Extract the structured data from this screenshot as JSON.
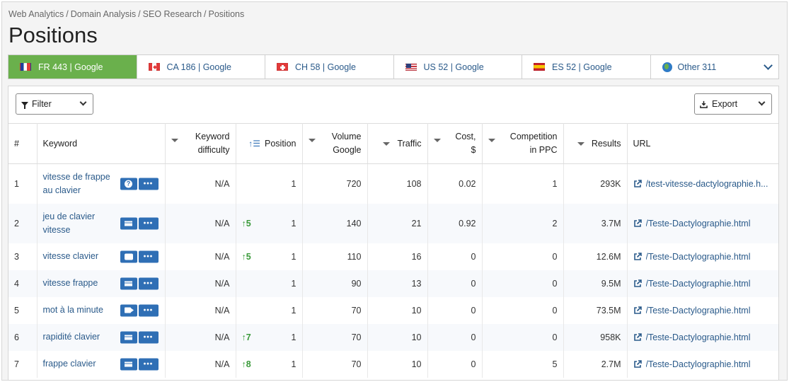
{
  "breadcrumb": [
    "Web Analytics",
    "Domain Analysis",
    "SEO Research",
    "Positions"
  ],
  "page_title": "Positions",
  "tabs": [
    {
      "label": "FR 443 | Google",
      "flag": "fr",
      "active": true
    },
    {
      "label": "CA 186 | Google",
      "flag": "ca",
      "active": false
    },
    {
      "label": "CH 58 | Google",
      "flag": "ch",
      "active": false
    },
    {
      "label": "US 52 | Google",
      "flag": "us",
      "active": false
    },
    {
      "label": "ES 52 | Google",
      "flag": "es",
      "active": false
    },
    {
      "label": "Other 311",
      "flag": "globe",
      "active": false
    }
  ],
  "toolbar": {
    "filter_label": "Filter",
    "export_label": "Export"
  },
  "columns": {
    "index": "#",
    "keyword": "Keyword",
    "difficulty": [
      "Keyword",
      "difficulty"
    ],
    "position": "Position",
    "volume": [
      "Volume",
      "Google"
    ],
    "traffic": "Traffic",
    "cost": [
      "Cost,",
      "$"
    ],
    "competition": [
      "Competition",
      "in PPC"
    ],
    "results": "Results",
    "url": "URL"
  },
  "rows": [
    {
      "n": "1",
      "keyword": [
        "vitesse de frappe",
        "au clavier"
      ],
      "icon": "question",
      "difficulty": "N/A",
      "change": "",
      "position": "1",
      "volume": "720",
      "traffic": "108",
      "cost": "0.02",
      "competition": "1",
      "results": "293K",
      "url": "/test-vitesse-dactylographie.h..."
    },
    {
      "n": "2",
      "keyword": [
        "jeu de clavier",
        "vitesse"
      ],
      "icon": "lines",
      "difficulty": "N/A",
      "change": "↑5",
      "position": "1",
      "volume": "140",
      "traffic": "21",
      "cost": "0.92",
      "competition": "2",
      "results": "3.7M",
      "url": "/Teste-Dactylographie.html"
    },
    {
      "n": "3",
      "keyword": [
        "vitesse clavier"
      ],
      "icon": "bubble",
      "difficulty": "N/A",
      "change": "↑5",
      "position": "1",
      "volume": "110",
      "traffic": "16",
      "cost": "0",
      "competition": "0",
      "results": "12.6M",
      "url": "/Teste-Dactylographie.html"
    },
    {
      "n": "4",
      "keyword": [
        "vitesse frappe"
      ],
      "icon": "lines",
      "difficulty": "N/A",
      "change": "",
      "position": "1",
      "volume": "90",
      "traffic": "13",
      "cost": "0",
      "competition": "0",
      "results": "9.5M",
      "url": "/Teste-Dactylographie.html"
    },
    {
      "n": "5",
      "keyword": [
        "mot à la minute"
      ],
      "icon": "camera",
      "difficulty": "N/A",
      "change": "",
      "position": "1",
      "volume": "70",
      "traffic": "10",
      "cost": "0",
      "competition": "0",
      "results": "73.5M",
      "url": "/Teste-Dactylographie.html"
    },
    {
      "n": "6",
      "keyword": [
        "rapidité clavier"
      ],
      "icon": "lines",
      "difficulty": "N/A",
      "change": "↑7",
      "position": "1",
      "volume": "70",
      "traffic": "10",
      "cost": "0",
      "competition": "0",
      "results": "958K",
      "url": "/Teste-Dactylographie.html"
    },
    {
      "n": "7",
      "keyword": [
        "frappe clavier"
      ],
      "icon": "lines",
      "difficulty": "N/A",
      "change": "↑8",
      "position": "1",
      "volume": "70",
      "traffic": "10",
      "cost": "0",
      "competition": "5",
      "results": "2.7M",
      "url": "/Teste-Dactylographie.html"
    }
  ],
  "colors": {
    "active_tab": "#6ab04c",
    "link": "#2a5a8a",
    "action_button": "#2f6fb5",
    "positive_change": "#3a9a3a"
  }
}
